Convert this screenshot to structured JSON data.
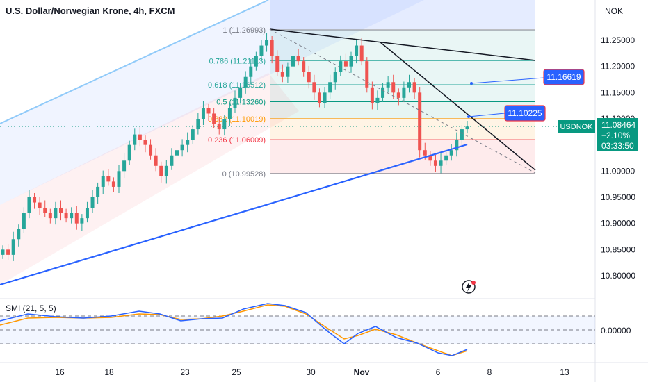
{
  "header": {
    "title": "U.S. Dollar/Norwegian Krone, 4h, FXCM",
    "currency": "NOK"
  },
  "colors": {
    "up": "#26a69a",
    "down": "#ef5350",
    "trendline": "#2962ff",
    "stoch_k": "#2962ff",
    "stoch_d": "#ff9800",
    "price_tag": "#089981"
  },
  "price_tag": {
    "symbol": "USDNOK",
    "price": "11.08464",
    "change": "+2.10%",
    "countdown": "03:33:50"
  },
  "callouts": [
    "11.16619",
    "11.10225"
  ],
  "fib_levels": [
    {
      "ratio": "1",
      "label": "1 (11.26993)",
      "value": 11.26993
    },
    {
      "ratio": "0.786",
      "label": "0.786 (11.21113)",
      "value": 11.21113
    },
    {
      "ratio": "0.618",
      "label": "0.618 (11.16512)",
      "value": 11.16512
    },
    {
      "ratio": "0.5",
      "label": "0.5 (11.13260)",
      "value": 11.1326
    },
    {
      "ratio": "0.382",
      "label": "0.382 (11.10019)",
      "value": 11.10019
    },
    {
      "ratio": "0.236",
      "label": "0.236 (11.06009)",
      "value": 11.06009
    },
    {
      "ratio": "0",
      "label": "0 (10.99528)",
      "value": 10.99528
    }
  ],
  "indicator": {
    "label": "SMI (21, 5, 5)",
    "ticks": [
      "0.00000"
    ]
  },
  "chart_data": {
    "type": "candlestick",
    "title": "U.S. Dollar/Norwegian Krone, 4h, FXCM",
    "y_axis": {
      "ticks": [
        "11.25000",
        "11.20000",
        "11.15000",
        "11.10000",
        "11.05000",
        "11.00000",
        "10.95000",
        "10.90000",
        "10.85000",
        "10.80000"
      ],
      "range": [
        10.765,
        11.31
      ]
    },
    "x_axis": {
      "ticks": [
        "16",
        "18",
        "23",
        "25",
        "30",
        "Nov",
        "6",
        "8",
        "13"
      ]
    },
    "series_closes": [
      10.85,
      10.84,
      10.87,
      10.89,
      10.92,
      10.95,
      10.94,
      10.93,
      10.92,
      10.91,
      10.93,
      10.92,
      10.91,
      10.92,
      10.9,
      10.91,
      10.93,
      10.95,
      10.97,
      10.99,
      10.98,
      10.97,
      11.0,
      11.02,
      11.05,
      11.07,
      11.06,
      11.05,
      11.03,
      11.01,
      10.99,
      11.01,
      11.03,
      11.04,
      11.05,
      11.06,
      11.08,
      11.1,
      11.12,
      11.11,
      11.09,
      11.08,
      11.1,
      11.12,
      11.14,
      11.16,
      11.18,
      11.2,
      11.22,
      11.24,
      11.25,
      11.22,
      11.19,
      11.18,
      11.2,
      11.22,
      11.21,
      11.19,
      11.17,
      11.15,
      11.13,
      11.15,
      11.17,
      11.19,
      11.21,
      11.2,
      11.22,
      11.24,
      11.21,
      11.16,
      11.13,
      11.14,
      11.16,
      11.17,
      11.15,
      11.14,
      11.16,
      11.17,
      11.15,
      11.04,
      11.03,
      11.02,
      11.01,
      11.02,
      11.03,
      11.04,
      11.06,
      11.08,
      11.085
    ]
  }
}
